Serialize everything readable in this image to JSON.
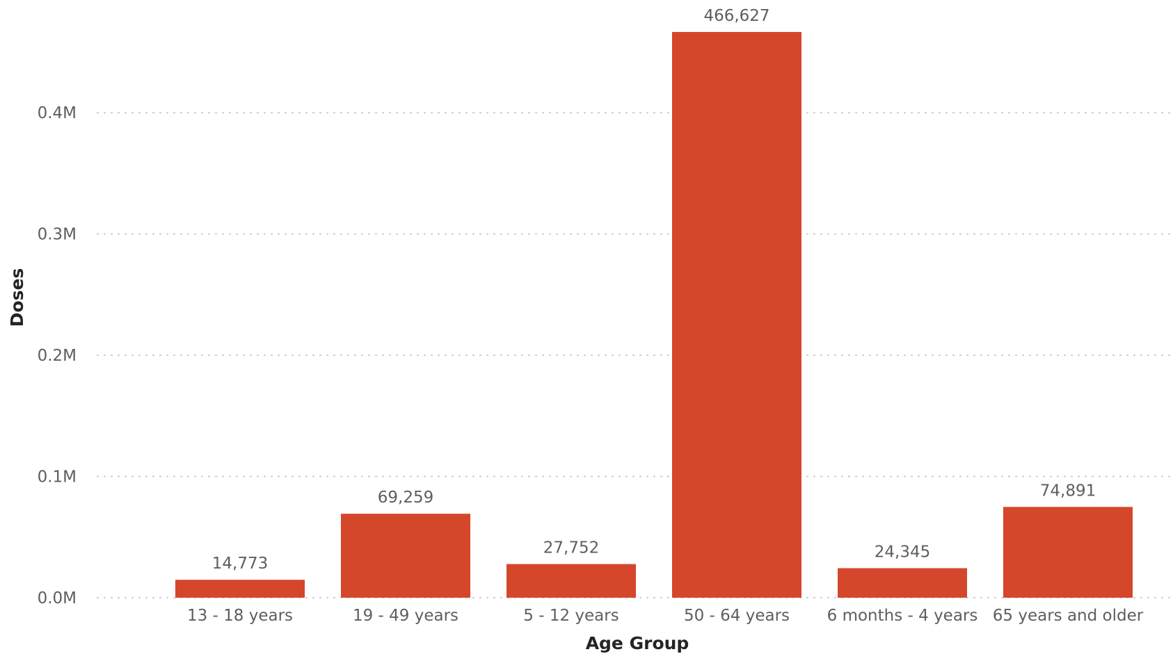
{
  "chart_data": {
    "type": "bar",
    "title": "",
    "xlabel": "Age Group",
    "ylabel": "Doses",
    "categories": [
      "13 - 18 years",
      "19 - 49 years",
      "5 - 12 years",
      "50 - 64 years",
      "6 months - 4 years",
      "65 years and older"
    ],
    "values": [
      14773,
      69259,
      27752,
      466627,
      24345,
      74891
    ],
    "data_labels": [
      "14,773",
      "69,259",
      "27,752",
      "466,627",
      "24,345",
      "74,891"
    ],
    "yticks": [
      0,
      100000,
      200000,
      300000,
      400000
    ],
    "ytick_labels": [
      "0.0M",
      "0.1M",
      "0.2M",
      "0.3M",
      "0.4M"
    ],
    "ylim": [
      0,
      466627
    ],
    "grid": true,
    "legend": "none",
    "bar_color": "#d4472a"
  }
}
